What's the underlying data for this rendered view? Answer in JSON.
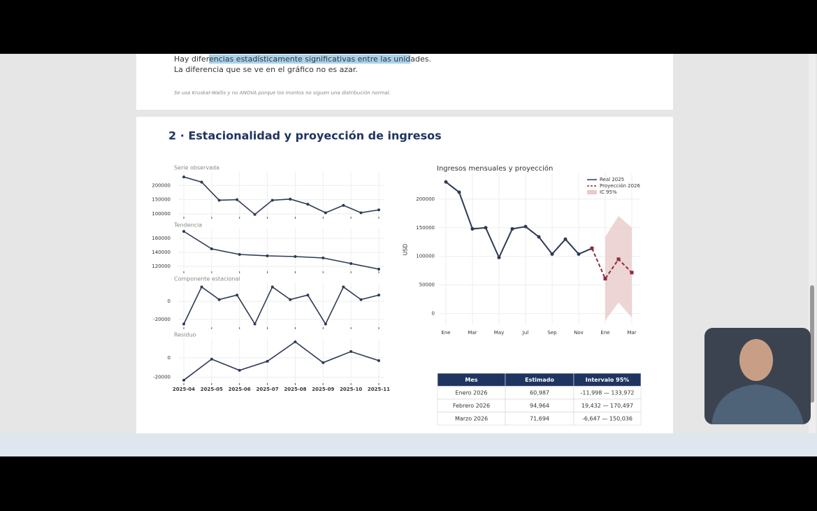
{
  "page": {
    "finding_parts": [
      "Hay difer",
      "encias estadísticamente significativas entre las unid",
      "ades."
    ],
    "finding_2": "La diferencia que se ve en el gráfico no es azar.",
    "note": "Se usa Kruskal-Wallis y no ANOVA porque los montos no siguen una distribución normal.",
    "section_title": "2 · Estacionalidad y proyección de ingresos"
  },
  "chart_data": [
    {
      "type": "decomposition",
      "color": "#2d3a56",
      "grid": true,
      "xlim": [
        0,
        7
      ],
      "xticks": [
        {
          "value": 0,
          "label": "2025-04"
        },
        {
          "value": 1,
          "label": "2025-05"
        },
        {
          "value": 2,
          "label": "2025-06"
        },
        {
          "value": 3,
          "label": "2025-07"
        },
        {
          "value": 4,
          "label": "2025-08"
        },
        {
          "value": 5,
          "label": "2025-09"
        },
        {
          "value": 6,
          "label": "2025-10"
        },
        {
          "value": 7,
          "label": "2025-11"
        }
      ],
      "subplots": [
        {
          "title": "Serie observada",
          "x": [
            0,
            0.64,
            1.27,
            1.91,
            2.55,
            3.18,
            3.82,
            4.45,
            5.09,
            5.73,
            6.36,
            7
          ],
          "values": [
            230000,
            212000,
            148000,
            150000,
            98000,
            148000,
            152000,
            134000,
            104000,
            130000,
            104000,
            114000
          ],
          "ylim": [
            90000,
            250000
          ],
          "yticks": [
            100000,
            150000,
            200000
          ]
        },
        {
          "title": "Tendencia",
          "x": [
            0,
            1,
            2,
            3,
            4,
            5,
            6,
            7
          ],
          "values": [
            170000,
            145000,
            137000,
            135000,
            134000,
            132000,
            124000,
            116000
          ],
          "ylim": [
            113000,
            174000
          ],
          "yticks": [
            120000,
            140000,
            160000
          ]
        },
        {
          "title": "Componente estacional",
          "x": [
            0,
            0.64,
            1.27,
            1.91,
            2.55,
            3.18,
            3.82,
            4.45,
            5.09,
            5.73,
            6.36,
            7
          ],
          "values": [
            -25000,
            16000,
            2000,
            7000,
            -25000,
            16000,
            2000,
            7000,
            -25000,
            16000,
            2000,
            7000
          ],
          "ylim": [
            -28500,
            21000
          ],
          "yticks": [
            -20000,
            0
          ]
        },
        {
          "title": "Residuo",
          "x": [
            0,
            1,
            2,
            3,
            4,
            5,
            6,
            7
          ],
          "values": [
            -23000,
            -1400,
            -12900,
            -3600,
            16400,
            -5000,
            6400,
            -2900
          ],
          "ylim": [
            -26000,
            20000
          ],
          "yticks": [
            -20000,
            0
          ]
        }
      ]
    },
    {
      "type": "line",
      "title": "Ingresos mensuales y proyección",
      "ylabel": "USD",
      "grid": true,
      "legend": "upper right",
      "categories": [
        "Ene",
        null,
        "Mar",
        null,
        "May",
        null,
        "Jul",
        null,
        "Sep",
        null,
        "Nov",
        null,
        "Ene",
        null,
        "Mar"
      ],
      "ylim": [
        -20000,
        245000
      ],
      "yticks": [
        0,
        50000,
        100000,
        150000,
        200000
      ],
      "series": [
        {
          "name": "Real 2025",
          "color": "#2d3a56",
          "dashed": false,
          "values": [
            230000,
            212000,
            148000,
            150000,
            98000,
            148000,
            152000,
            134000,
            104000,
            130000,
            104000,
            114000,
            null,
            null,
            null
          ]
        },
        {
          "name": "Proyección 2026",
          "color": "#8b2e3a",
          "dashed": true,
          "values": [
            null,
            null,
            null,
            null,
            null,
            null,
            null,
            null,
            null,
            null,
            null,
            114000,
            60987,
            94964,
            71694
          ]
        }
      ],
      "band": {
        "name": "IC 95%",
        "color": "#e9c9cb",
        "lower": [
          null,
          null,
          null,
          null,
          null,
          null,
          null,
          null,
          null,
          null,
          null,
          null,
          -11998,
          19432,
          -6647
        ],
        "upper": [
          null,
          null,
          null,
          null,
          null,
          null,
          null,
          null,
          null,
          null,
          null,
          null,
          133972,
          170497,
          150036
        ]
      }
    }
  ],
  "table": {
    "columns": [
      "Mes",
      "Estimado",
      "Intervalo 95%"
    ],
    "rows": [
      [
        "Enero 2026",
        "60,987",
        "-11,998 — 133,972"
      ],
      [
        "Febrero 2026",
        "94,964",
        "19,432 — 170,497"
      ],
      [
        "Marzo 2026",
        "71,694",
        "-6,647 — 150,036"
      ]
    ]
  }
}
